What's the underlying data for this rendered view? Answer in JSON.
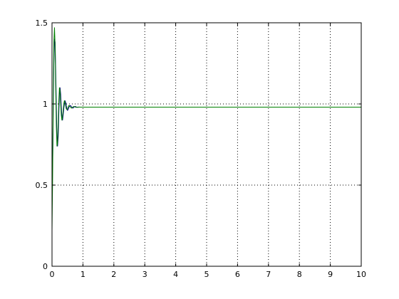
{
  "chart_data": {
    "type": "line",
    "title": "",
    "xlabel": "",
    "ylabel": "",
    "xlim": [
      0,
      10
    ],
    "ylim": [
      0,
      1.5
    ],
    "grid": true,
    "x_ticks": [
      0,
      1,
      2,
      3,
      4,
      5,
      6,
      7,
      8,
      9,
      10
    ],
    "y_ticks": [
      0,
      0.5,
      1,
      1.5
    ],
    "x_tick_labels": [
      "0",
      "1",
      "2",
      "3",
      "4",
      "5",
      "6",
      "7",
      "8",
      "9",
      "10"
    ],
    "y_tick_labels": [
      "0",
      "0.5",
      "1",
      "1.5"
    ],
    "series": [
      {
        "color": "#00007f",
        "x": [
          0.0,
          0.02,
          0.04,
          0.06,
          0.08,
          0.1,
          0.12,
          0.14,
          0.16,
          0.18,
          0.2,
          0.22,
          0.24,
          0.26,
          0.28,
          0.3,
          0.32,
          0.34,
          0.36,
          0.38,
          0.4,
          0.42,
          0.44,
          0.46,
          0.48,
          0.5,
          0.52,
          0.54,
          0.56,
          0.58,
          0.6,
          0.62,
          0.64,
          0.66,
          0.68,
          0.7,
          0.72,
          0.74,
          0.76,
          0.78,
          0.8,
          0.82,
          0.84,
          0.86,
          0.88,
          0.9,
          0.92,
          0.94,
          0.96,
          0.98,
          1.0,
          1.1,
          1.2,
          1.5,
          2,
          3,
          4,
          5,
          6,
          7,
          8,
          9,
          10
        ],
        "y": [
          0.58,
          0.62,
          0.95,
          1.25,
          1.4,
          1.38,
          1.2,
          0.98,
          0.8,
          0.74,
          0.8,
          0.94,
          1.06,
          1.1,
          1.06,
          0.98,
          0.92,
          0.9,
          0.93,
          0.97,
          1.0,
          1.02,
          1.01,
          0.99,
          0.97,
          0.96,
          0.965,
          0.975,
          0.985,
          0.99,
          0.99,
          0.985,
          0.98,
          0.975,
          0.975,
          0.978,
          0.982,
          0.984,
          0.984,
          0.982,
          0.98,
          0.979,
          0.979,
          0.98,
          0.981,
          0.981,
          0.98,
          0.98,
          0.98,
          0.98,
          0.98,
          0.98,
          0.98,
          0.98,
          0.98,
          0.98,
          0.98,
          0.98,
          0.98,
          0.98,
          0.98,
          0.98,
          0.98
        ]
      },
      {
        "color": "#007f00",
        "x": [
          0.0,
          0.02,
          0.04,
          0.06,
          0.08,
          0.1,
          0.12,
          0.14,
          0.16,
          0.18,
          0.2,
          0.22,
          0.24,
          0.26,
          0.28,
          0.3,
          0.32,
          0.34,
          0.36,
          0.38,
          0.4,
          0.42,
          0.44,
          0.46,
          0.48,
          0.5,
          0.52,
          0.54,
          0.56,
          0.58,
          0.6,
          0.62,
          0.64,
          0.66,
          0.68,
          0.7,
          0.72,
          0.74,
          0.76,
          0.78,
          0.8,
          0.82,
          0.84,
          0.86,
          0.88,
          0.9,
          0.92,
          0.94,
          0.96,
          0.98,
          1.0,
          1.1,
          1.2,
          1.5,
          2,
          3,
          4,
          5,
          6,
          7,
          8,
          9,
          10
        ],
        "y": [
          0.22,
          0.55,
          1.05,
          1.38,
          1.47,
          1.36,
          1.1,
          0.86,
          0.74,
          0.76,
          0.88,
          1.02,
          1.1,
          1.08,
          1.0,
          0.93,
          0.9,
          0.92,
          0.96,
          1.0,
          1.02,
          1.01,
          0.99,
          0.97,
          0.965,
          0.97,
          0.98,
          0.99,
          0.99,
          0.985,
          0.98,
          0.975,
          0.975,
          0.978,
          0.982,
          0.984,
          0.984,
          0.982,
          0.98,
          0.979,
          0.979,
          0.98,
          0.981,
          0.981,
          0.98,
          0.98,
          0.98,
          0.98,
          0.98,
          0.98,
          0.98,
          0.98,
          0.98,
          0.98,
          0.98,
          0.98,
          0.98,
          0.98,
          0.98,
          0.98,
          0.98,
          0.98,
          0.98
        ]
      }
    ]
  }
}
